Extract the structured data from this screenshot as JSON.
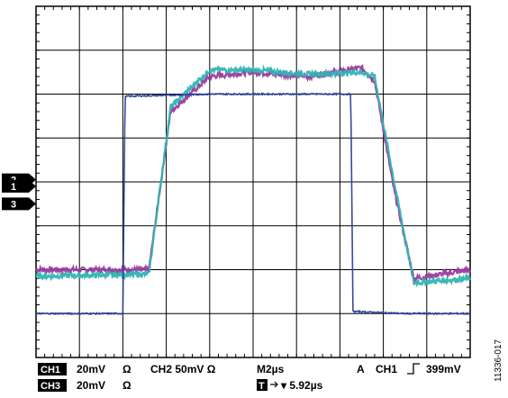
{
  "chart_data": {
    "type": "line",
    "grid": true,
    "x_divisions": 10,
    "y_divisions": 8,
    "x_range_us": [
      0,
      20
    ],
    "y_range_div": [
      -4,
      4
    ],
    "series": [
      {
        "name": "CH1",
        "color": "#9b3b9e",
        "x": [
          0,
          5.2,
          6.2,
          8.0,
          10,
          12.5,
          15.0,
          15.6,
          16.5,
          17.4,
          20
        ],
        "y": [
          -2.0,
          -2.0,
          1.6,
          2.4,
          2.5,
          2.4,
          2.6,
          2.3,
          -0.2,
          -2.2,
          -2.0
        ]
      },
      {
        "name": "CH2",
        "color": "#33b3b3",
        "x": [
          0,
          5.2,
          6.2,
          8.0,
          10,
          12.5,
          15.0,
          15.6,
          16.5,
          17.4,
          20
        ],
        "y": [
          -2.15,
          -2.1,
          1.7,
          2.55,
          2.55,
          2.45,
          2.5,
          2.4,
          0.0,
          -2.3,
          -2.2
        ]
      },
      {
        "name": "CH3",
        "color": "#2b3f9a",
        "x": [
          0,
          4.0,
          4.1,
          8.0,
          12.0,
          14.5,
          14.6,
          17.0,
          20
        ],
        "y": [
          -3.0,
          -3.0,
          1.95,
          2.0,
          2.0,
          2.0,
          -2.95,
          -3.0,
          -3.0
        ]
      }
    ]
  },
  "markers": [
    {
      "label": "2",
      "level_div": 0.05
    },
    {
      "label": "1",
      "level_div": -0.1
    },
    {
      "label": "3",
      "level_div": -0.5
    }
  ],
  "readout": {
    "ch1_badge": "CH1",
    "ch1_scale": "20mV",
    "ch1_ohm": "Ω",
    "ch2_setting": "CH2 50mV Ω",
    "timebase": "M2µs",
    "trigger_prefix": "A",
    "trigger_source": "CH1",
    "trigger_level": "399mV",
    "ch3_badge": "CH3",
    "ch3_scale": "20mV",
    "ch3_ohm": "Ω",
    "t_badge": "T",
    "t_offset": "▾ 5.92µs"
  },
  "figure_id": "11336-017"
}
